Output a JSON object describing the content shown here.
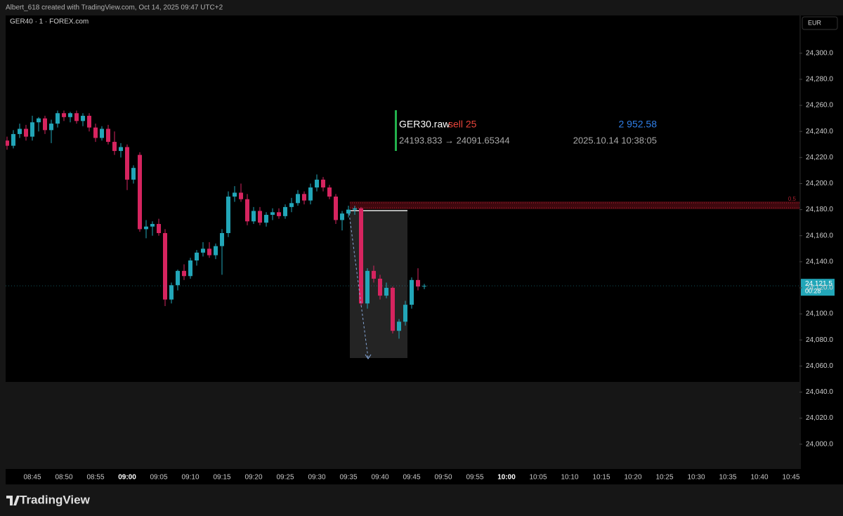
{
  "header": {
    "credit": "Albert_618 created with TradingView.com, Oct 14, 2025 09:47 UTC+2"
  },
  "footer": {
    "brand": "TradingView"
  },
  "chart_data": {
    "type": "candlestick",
    "title": "GER40 · 1 · FOREX.com",
    "currency": "EUR",
    "up_color": "#22a6b8",
    "down_color": "#d6245f",
    "x": [
      "08:41",
      "08:42",
      "08:43",
      "08:44",
      "08:45",
      "08:46",
      "08:47",
      "08:48",
      "08:49",
      "08:50",
      "08:51",
      "08:52",
      "08:53",
      "08:54",
      "08:55",
      "08:56",
      "08:57",
      "08:58",
      "08:59",
      "09:00",
      "09:01",
      "09:02",
      "09:03",
      "09:04",
      "09:05",
      "09:06",
      "09:07",
      "09:08",
      "09:09",
      "09:10",
      "09:11",
      "09:12",
      "09:13",
      "09:14",
      "09:15",
      "09:16",
      "09:17",
      "09:18",
      "09:19",
      "09:20",
      "09:21",
      "09:22",
      "09:23",
      "09:24",
      "09:25",
      "09:26",
      "09:27",
      "09:28",
      "09:29",
      "09:30",
      "09:31",
      "09:32",
      "09:33",
      "09:34",
      "09:35",
      "09:36",
      "09:37",
      "09:38",
      "09:39",
      "09:40",
      "09:41",
      "09:42",
      "09:43",
      "09:44",
      "09:45",
      "09:46",
      "09:47"
    ],
    "open": [
      24233,
      24229,
      24238,
      24242,
      24236,
      24247,
      24250,
      24241,
      24246,
      24254,
      24251,
      24254,
      24248,
      24252,
      24243,
      24235,
      24242,
      24232,
      24225,
      24228,
      24203,
      24222,
      24165,
      24167,
      24169,
      24162,
      24111,
      24122,
      24133,
      24129,
      24141,
      24147,
      24150,
      24145,
      24152,
      24162,
      24190,
      24193,
      24188,
      24171,
      24179,
      24170,
      24176,
      24178,
      24175,
      24182,
      24185,
      24192,
      24187,
      24197,
      24203,
      24197,
      24190,
      24172,
      24177,
      24180,
      24181,
      24108,
      24133,
      24127,
      24114,
      24120,
      24087,
      24094,
      24107,
      24126,
      24121
    ],
    "high": [
      24236,
      24241,
      24246,
      24245,
      24252,
      24251,
      24252,
      24249,
      24256,
      24256,
      24255,
      24256,
      24254,
      24254,
      24246,
      24244,
      24245,
      24240,
      24231,
      24230,
      24214,
      24224,
      24172,
      24171,
      24173,
      24165,
      24124,
      24134,
      24138,
      24143,
      24149,
      24155,
      24155,
      24154,
      24165,
      24194,
      24198,
      24200,
      24192,
      24182,
      24182,
      24178,
      24181,
      24181,
      24184,
      24189,
      24195,
      24194,
      24200,
      24207,
      24205,
      24199,
      24192,
      24179,
      24183,
      24183,
      24182,
      24135,
      24137,
      24130,
      24124,
      24121,
      24096,
      24110,
      24128,
      24135,
      24123
    ],
    "low": [
      24226,
      24227,
      24235,
      24233,
      24233,
      24240,
      24238,
      24231,
      24243,
      24248,
      24247,
      24246,
      24244,
      24240,
      24232,
      24233,
      24230,
      24222,
      24220,
      24195,
      24200,
      24163,
      24158,
      24160,
      24160,
      24106,
      24108,
      24118,
      24126,
      24127,
      24137,
      24144,
      24143,
      24142,
      24130,
      24159,
      24186,
      24186,
      24168,
      24169,
      24168,
      24167,
      24172,
      24173,
      24173,
      24178,
      24183,
      24184,
      24184,
      24194,
      24194,
      24188,
      24169,
      24164,
      24174,
      24176,
      24106,
      24104,
      24124,
      24111,
      24112,
      24085,
      24081,
      24091,
      24104,
      24118,
      24119
    ],
    "close": [
      24229,
      24238,
      24242,
      24236,
      24247,
      24250,
      24241,
      24246,
      24254,
      24251,
      24254,
      24248,
      24252,
      24243,
      24235,
      24242,
      24232,
      24225,
      24228,
      24203,
      24212,
      24165,
      24167,
      24169,
      24162,
      24111,
      24122,
      24133,
      24129,
      24141,
      24147,
      24150,
      24145,
      24152,
      24162,
      24190,
      24193,
      24188,
      24171,
      24179,
      24170,
      24176,
      24178,
      24175,
      24182,
      24185,
      24192,
      24187,
      24197,
      24203,
      24197,
      24190,
      24172,
      24177,
      24180,
      24181,
      24108,
      24133,
      24127,
      24114,
      24120,
      24087,
      24094,
      24107,
      24126,
      24121,
      24121.5
    ],
    "ylim": [
      23981,
      24329
    ],
    "yticks": [
      {
        "value": 24000,
        "label": "24,000.0"
      },
      {
        "value": 24020,
        "label": "24,020.0"
      },
      {
        "value": 24040,
        "label": "24,040.0"
      },
      {
        "value": 24060,
        "label": "24,060.0"
      },
      {
        "value": 24080,
        "label": "24,080.0"
      },
      {
        "value": 24100,
        "label": "24,100.0"
      },
      {
        "value": 24120,
        "label": "24,120.0"
      },
      {
        "value": 24140,
        "label": "24,140.0"
      },
      {
        "value": 24160,
        "label": "24,160.0"
      },
      {
        "value": 24180,
        "label": "24,180.0"
      },
      {
        "value": 24200,
        "label": "24,200.0"
      },
      {
        "value": 24220,
        "label": "24,220.0"
      },
      {
        "value": 24240,
        "label": "24,240.0"
      },
      {
        "value": 24260,
        "label": "24,260.0"
      },
      {
        "value": 24280,
        "label": "24,280.0"
      },
      {
        "value": 24300,
        "label": "24,300.0"
      }
    ],
    "xticks": [
      "08:45",
      "08:50",
      "08:55",
      "09:00",
      "09:05",
      "09:10",
      "09:15",
      "09:20",
      "09:25",
      "09:30",
      "09:35",
      "09:40",
      "09:45",
      "09:50",
      "09:55",
      "10:00",
      "10:05",
      "10:10",
      "10:15",
      "10:20",
      "10:25",
      "10:30",
      "10:35",
      "10:40",
      "10:45"
    ],
    "last_price": {
      "value": 24121.5,
      "label": "24,121.5"
    },
    "countdown": "00:28",
    "level_label": "0.5",
    "trade": {
      "symbol": "GER30.raw",
      "side": "sell 25",
      "profit": "2 952.58",
      "prices": "24193.833 → 24091.65344",
      "time": "2025.10.14 10:38:05"
    }
  }
}
